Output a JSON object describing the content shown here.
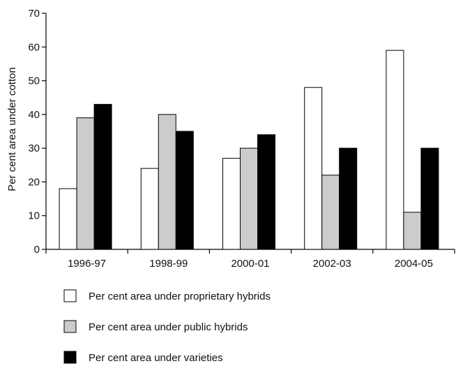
{
  "chart_data": {
    "type": "bar",
    "title": "",
    "xlabel": "",
    "ylabel": "Per cent area under cotton",
    "ylim": [
      0,
      70
    ],
    "yticks": [
      0,
      10,
      20,
      30,
      40,
      50,
      60,
      70
    ],
    "grid": false,
    "legend_position": "bottom",
    "categories": [
      "1996-97",
      "1998-99",
      "2000-01",
      "2002-03",
      "2004-05"
    ],
    "series": [
      {
        "name": "Per cent area under proprietary hybrids",
        "color": "#ffffff",
        "values": [
          18,
          24,
          27,
          48,
          59
        ]
      },
      {
        "name": "Per cent area under public hybrids",
        "color": "#cccccc",
        "values": [
          39,
          40,
          30,
          22,
          11
        ]
      },
      {
        "name": "Per cent area under varieties",
        "color": "#000000",
        "values": [
          43,
          35,
          34,
          30,
          30
        ]
      }
    ]
  }
}
